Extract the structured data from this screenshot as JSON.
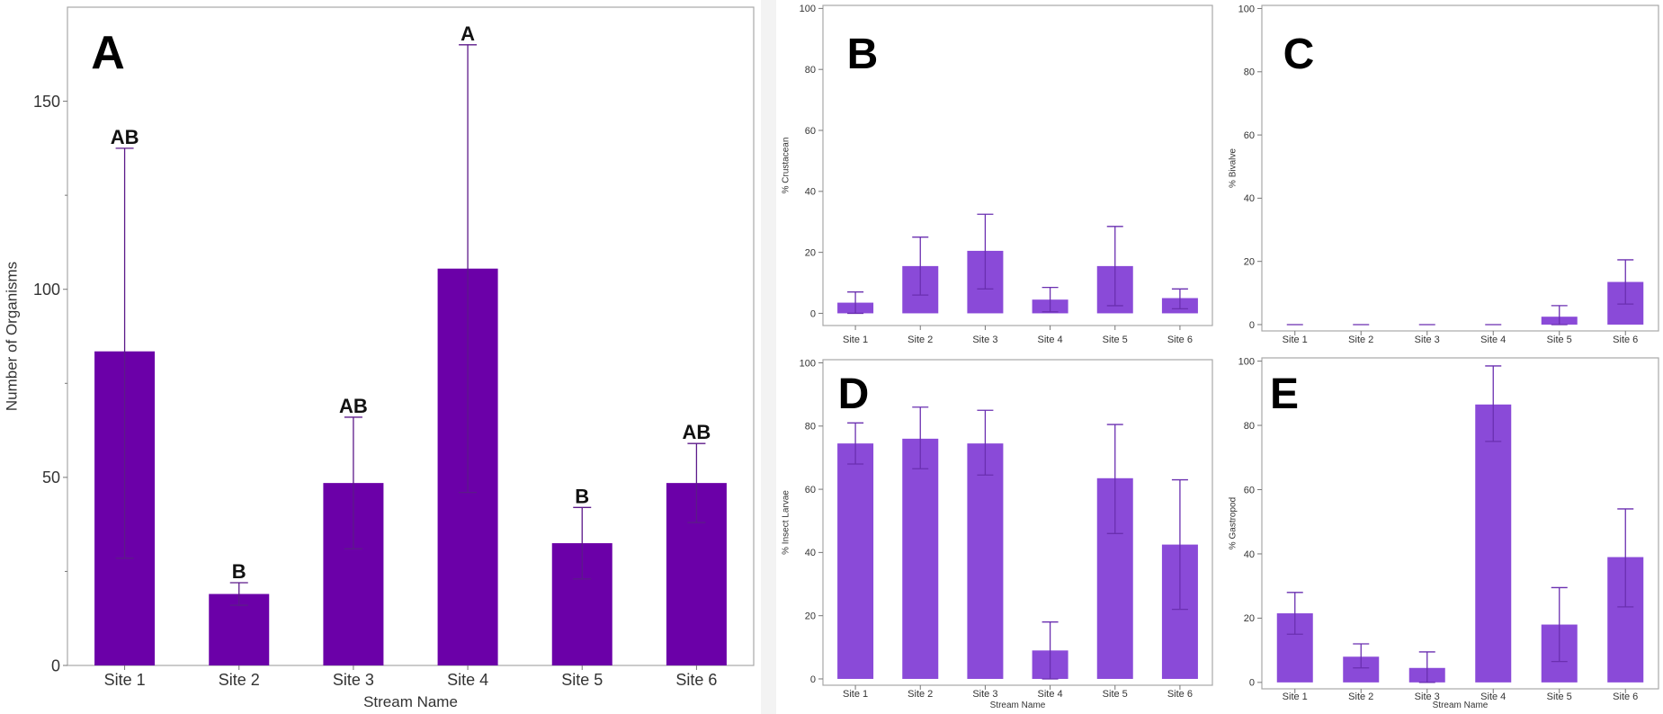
{
  "colors": {
    "main_bar": "#6b00a8",
    "small_bar": "#8a4ad8",
    "axis": "#a0a0a0",
    "text": "#222222",
    "error": "#5c1a8a"
  },
  "chart_data": [
    {
      "id": "A",
      "type": "bar",
      "panel_letter": "A",
      "categories": [
        "Site 1",
        "Site 2",
        "Site 3",
        "Site 4",
        "Site 5",
        "Site 6"
      ],
      "values": [
        83.5,
        19,
        48.5,
        105.5,
        32.5,
        48.5
      ],
      "err_low": [
        28.5,
        16,
        31,
        46,
        23,
        38
      ],
      "err_high": [
        137.5,
        22,
        66,
        165,
        42,
        59
      ],
      "group_labels": [
        "AB",
        "B",
        "AB",
        "A",
        "B",
        "AB"
      ],
      "xlabel": "Stream Name",
      "ylabel": "Number of Organisms",
      "ylim": [
        0,
        175
      ],
      "yticks": [
        0,
        50,
        100,
        150
      ],
      "grid": false
    },
    {
      "id": "B",
      "type": "bar",
      "panel_letter": "B",
      "categories": [
        "Site 1",
        "Site 2",
        "Site 3",
        "Site 4",
        "Site 5",
        "Site 6"
      ],
      "values": [
        3.5,
        15.5,
        20.5,
        4.5,
        15.5,
        5
      ],
      "err_low": [
        0,
        6,
        8,
        0.5,
        2.5,
        1.5
      ],
      "err_high": [
        7,
        25,
        32.5,
        8.5,
        28.5,
        8
      ],
      "xlabel": "",
      "ylabel": "% Crustacean",
      "ylim": [
        -4,
        101
      ],
      "yticks": [
        0,
        20,
        40,
        60,
        80,
        100
      ],
      "grid": false
    },
    {
      "id": "C",
      "type": "bar",
      "panel_letter": "C",
      "categories": [
        "Site 1",
        "Site 2",
        "Site 3",
        "Site 4",
        "Site 5",
        "Site 6"
      ],
      "values": [
        0,
        0,
        0,
        0,
        2.5,
        13.5
      ],
      "err_low": [
        0,
        0,
        0,
        0,
        0,
        6.5
      ],
      "err_high": [
        0,
        0,
        0,
        0,
        6,
        20.5
      ],
      "xlabel": "",
      "ylabel": "% Bivalve",
      "ylim": [
        -2,
        101
      ],
      "yticks": [
        0,
        20,
        40,
        60,
        80,
        100
      ],
      "grid": false
    },
    {
      "id": "D",
      "type": "bar",
      "panel_letter": "D",
      "categories": [
        "Site 1",
        "Site 2",
        "Site 3",
        "Site 4",
        "Site 5",
        "Site 6"
      ],
      "values": [
        74.5,
        76,
        74.5,
        9,
        63.5,
        42.5
      ],
      "err_low": [
        68,
        66.5,
        64.5,
        0,
        46,
        22
      ],
      "err_high": [
        81,
        86,
        85,
        18,
        80.5,
        63
      ],
      "xlabel": "Stream Name",
      "ylabel": "% Insect Larvae",
      "ylim": [
        -2,
        101
      ],
      "yticks": [
        0,
        20,
        40,
        60,
        80,
        100
      ],
      "grid": false
    },
    {
      "id": "E",
      "type": "bar",
      "panel_letter": "E",
      "categories": [
        "Site 1",
        "Site 2",
        "Site 3",
        "Site 4",
        "Site 5",
        "Site 6"
      ],
      "values": [
        21.5,
        8,
        4.5,
        86.5,
        18,
        39
      ],
      "err_low": [
        15,
        4.5,
        0,
        75,
        6.5,
        23.5
      ],
      "err_high": [
        28,
        12,
        9.5,
        98.5,
        29.5,
        54
      ],
      "xlabel": "Stream Name",
      "ylabel": "% Gastropod",
      "ylim": [
        -2,
        101
      ],
      "yticks": [
        0,
        20,
        40,
        60,
        80,
        100
      ],
      "grid": false
    }
  ]
}
